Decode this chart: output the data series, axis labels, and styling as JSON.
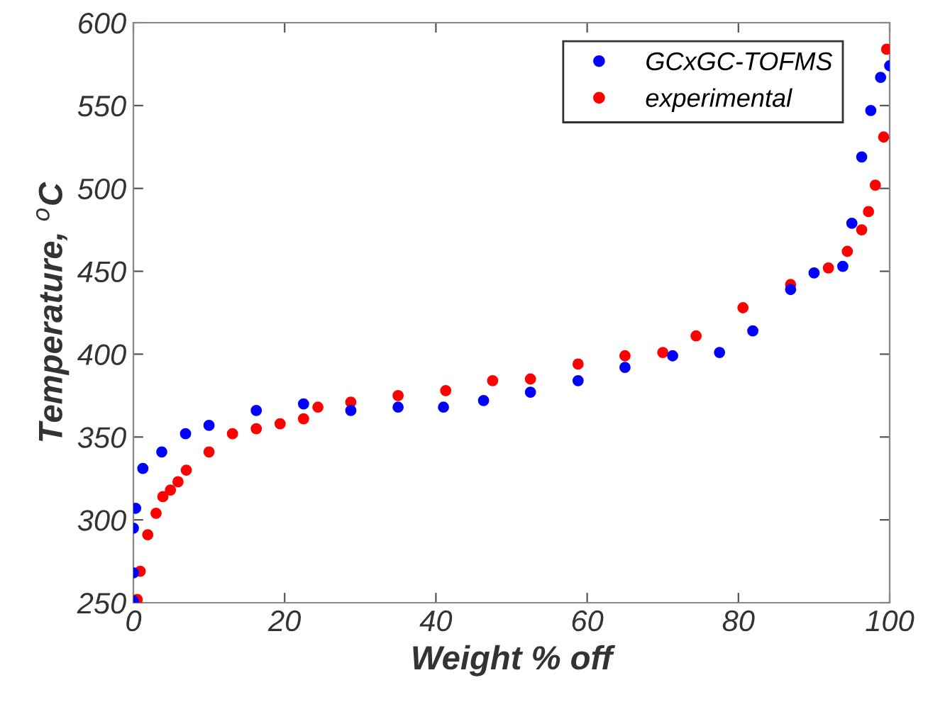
{
  "chart_data": {
    "type": "scatter",
    "xlabel": "Weight % off",
    "ylabel": "Temperature, $^{o}$C",
    "xlim": [
      0,
      100
    ],
    "ylim": [
      250,
      600
    ],
    "xticks": [
      0,
      20,
      40,
      60,
      80,
      100
    ],
    "yticks": [
      250,
      300,
      350,
      400,
      450,
      500,
      550,
      600
    ],
    "grid": false,
    "legend": "top right",
    "marker": "circle",
    "series": [
      {
        "name": "GCxGC-TOFMS",
        "color": "#0000ff",
        "x": [
          0,
          0,
          0,
          0.3,
          1.25,
          3.75,
          6.9,
          10,
          16.25,
          22.5,
          28.75,
          35,
          41,
          46.3,
          52.5,
          58.8,
          65,
          71.3,
          77.5,
          81.9,
          86.9,
          90,
          93.8,
          95,
          96.3,
          97.5,
          98.8,
          100
        ],
        "values": [
          251,
          268,
          295,
          307,
          331,
          341,
          352,
          357,
          366,
          370,
          366,
          368,
          368,
          372,
          377,
          384,
          392,
          399,
          401,
          414,
          439,
          449,
          453,
          479,
          519,
          547,
          567,
          574
        ]
      },
      {
        "name": "experimental",
        "color": "#ff0000",
        "x": [
          0.5,
          0.9,
          1.9,
          3,
          3.9,
          4.9,
          5.9,
          7,
          10,
          13.1,
          16.25,
          19.4,
          22.5,
          24.4,
          28.75,
          35,
          41.3,
          47.5,
          52.5,
          58.8,
          65,
          70,
          74.4,
          80.6,
          86.9,
          91.9,
          94.4,
          96.3,
          97.2,
          98.1,
          99.2,
          99.6
        ],
        "values": [
          252,
          269,
          291,
          304,
          314,
          318,
          323,
          330,
          341,
          352,
          355,
          358,
          361,
          368,
          371,
          375,
          378,
          384,
          385,
          394,
          399,
          401,
          411,
          428,
          442,
          452,
          462,
          475,
          486,
          502,
          531,
          584
        ]
      }
    ]
  }
}
